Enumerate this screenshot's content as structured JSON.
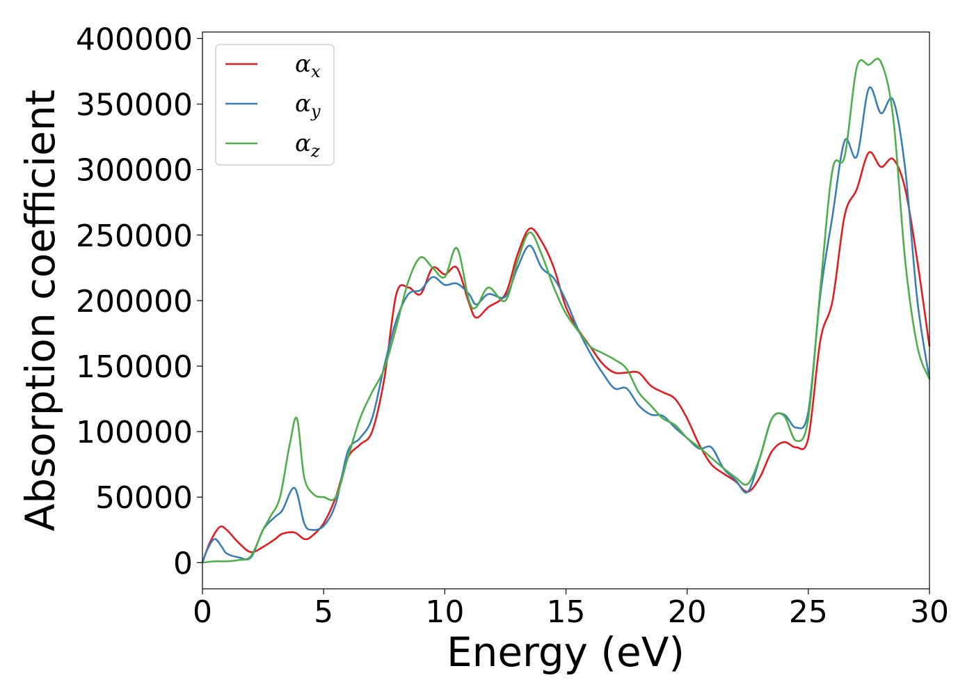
{
  "chart_data": {
    "type": "line",
    "title": "",
    "xlabel": "Energy (eV)",
    "ylabel": "Absorption coefficient",
    "xlim": [
      0,
      30
    ],
    "ylim": [
      -20000,
      405000
    ],
    "xticks": [
      0,
      5,
      10,
      15,
      20,
      25,
      30
    ],
    "yticks": [
      0,
      50000,
      100000,
      150000,
      200000,
      250000,
      300000,
      350000,
      400000
    ],
    "grid": false,
    "legend_position": "top-left",
    "series": [
      {
        "name": "α_x",
        "color": "#e41a1c",
        "x": [
          0,
          0.3,
          0.7,
          1.0,
          1.5,
          2.0,
          2.5,
          3.0,
          3.3,
          3.8,
          4.2,
          4.5,
          5.0,
          5.5,
          6.0,
          6.5,
          7.0,
          7.5,
          8.0,
          8.5,
          9.0,
          9.5,
          10.0,
          10.5,
          11.0,
          11.3,
          11.8,
          12.5,
          13.0,
          13.5,
          14.0,
          14.5,
          15.0,
          15.5,
          16.0,
          16.5,
          17.0,
          17.5,
          18.0,
          18.5,
          19.0,
          19.5,
          20.0,
          20.5,
          21.0,
          21.5,
          22.0,
          22.5,
          23.0,
          23.5,
          24.0,
          24.5,
          25.0,
          25.5,
          26.0,
          26.5,
          27.0,
          27.5,
          28.0,
          28.5,
          29.0,
          29.5,
          30.0
        ],
        "y": [
          0,
          15000,
          27000,
          25000,
          15000,
          8000,
          12000,
          18000,
          22000,
          23000,
          18000,
          20000,
          30000,
          50000,
          80000,
          90000,
          100000,
          140000,
          205000,
          210000,
          205000,
          225000,
          220000,
          225000,
          198000,
          187000,
          195000,
          205000,
          235000,
          255000,
          245000,
          225000,
          195000,
          178000,
          165000,
          152000,
          145000,
          145000,
          145000,
          135000,
          130000,
          125000,
          110000,
          90000,
          75000,
          68000,
          62000,
          54000,
          65000,
          85000,
          92000,
          88000,
          95000,
          170000,
          200000,
          265000,
          285000,
          313000,
          302000,
          308000,
          285000,
          230000,
          165000
        ]
      },
      {
        "name": "α_y",
        "color": "#377eb8",
        "x": [
          0,
          0.2,
          0.5,
          0.8,
          1.0,
          1.5,
          2.0,
          2.5,
          3.0,
          3.3,
          3.8,
          4.2,
          4.5,
          5.0,
          5.5,
          6.0,
          6.5,
          7.0,
          7.5,
          8.0,
          8.5,
          9.0,
          9.5,
          10.0,
          10.5,
          11.0,
          11.3,
          11.8,
          12.5,
          13.0,
          13.5,
          14.0,
          14.5,
          15.0,
          15.5,
          16.0,
          16.5,
          17.0,
          17.5,
          18.0,
          18.5,
          19.0,
          19.5,
          20.0,
          20.5,
          21.0,
          21.5,
          22.0,
          22.5,
          23.0,
          23.5,
          24.0,
          24.5,
          25.0,
          25.5,
          26.0,
          26.5,
          27.0,
          27.5,
          28.0,
          28.5,
          29.0,
          29.5,
          30.0
        ],
        "y": [
          0,
          10000,
          18000,
          12000,
          7000,
          4000,
          4000,
          25000,
          35000,
          40000,
          57000,
          30000,
          25000,
          28000,
          45000,
          85000,
          95000,
          110000,
          150000,
          185000,
          205000,
          208000,
          218000,
          212000,
          213000,
          205000,
          197000,
          205000,
          203000,
          225000,
          242000,
          225000,
          217000,
          200000,
          178000,
          160000,
          145000,
          133000,
          133000,
          120000,
          113000,
          112000,
          103000,
          95000,
          87000,
          88000,
          72000,
          63000,
          54000,
          80000,
          110000,
          113000,
          103000,
          115000,
          205000,
          265000,
          322000,
          310000,
          362000,
          343000,
          353000,
          300000,
          200000,
          140000
        ]
      },
      {
        "name": "α_z",
        "color": "#4daf4a",
        "x": [
          0,
          0.5,
          1.0,
          1.5,
          2.0,
          2.5,
          2.8,
          3.2,
          3.6,
          3.9,
          4.2,
          4.6,
          5.0,
          5.5,
          6.0,
          6.5,
          7.0,
          7.5,
          8.0,
          8.5,
          9.0,
          9.5,
          10.0,
          10.5,
          11.0,
          11.3,
          11.8,
          12.5,
          13.0,
          13.5,
          14.0,
          14.5,
          15.0,
          15.5,
          16.0,
          16.5,
          17.0,
          17.5,
          18.0,
          18.5,
          19.0,
          19.5,
          20.0,
          20.5,
          21.0,
          21.5,
          22.0,
          22.5,
          23.0,
          23.5,
          24.0,
          24.5,
          25.0,
          25.5,
          26.0,
          26.5,
          27.0,
          27.5,
          28.0,
          28.5,
          29.0,
          29.5,
          30.0
        ],
        "y": [
          0,
          1000,
          1000,
          2000,
          5000,
          25000,
          35000,
          50000,
          90000,
          110000,
          65000,
          52000,
          50000,
          50000,
          80000,
          110000,
          130000,
          148000,
          180000,
          215000,
          233000,
          225000,
          218000,
          240000,
          200000,
          195000,
          210000,
          200000,
          230000,
          252000,
          235000,
          210000,
          190000,
          177000,
          165000,
          160000,
          155000,
          148000,
          130000,
          120000,
          110000,
          105000,
          95000,
          88000,
          80000,
          72000,
          65000,
          60000,
          80000,
          110000,
          112000,
          93000,
          110000,
          210000,
          300000,
          310000,
          378000,
          380000,
          382000,
          340000,
          230000,
          165000,
          140000
        ]
      }
    ]
  }
}
